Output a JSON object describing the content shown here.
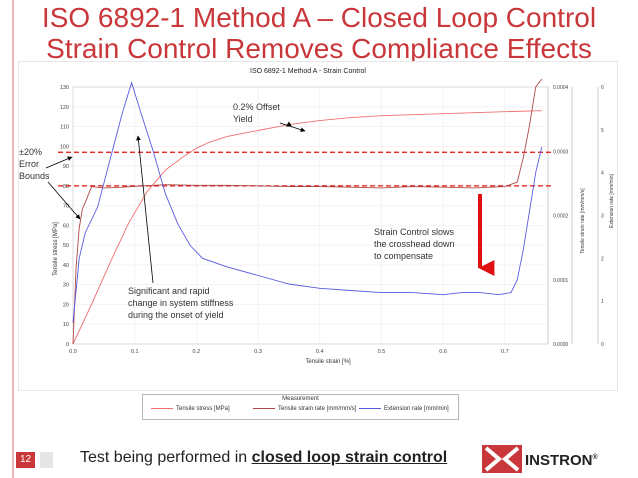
{
  "slide": {
    "title_line1": "ISO 6892-1 Method A – Closed Loop Control",
    "title_line2": "Strain Control Removes Compliance Effects",
    "page_number": "12",
    "footer_prefix": "Test being performed in ",
    "footer_emphasis": "closed loop strain control",
    "logo_text": "INSTRON",
    "logo_mark": "®"
  },
  "chart_data": {
    "type": "line",
    "title": "ISO 6892-1 Method A - Strain Control",
    "xlabel": "Tensile strain [%]",
    "ylabel_left": "Tensile stress [MPa]",
    "ylabel_right1": "Tensile strain rate [mm/mm/s]",
    "ylabel_right2": "Extension rate [mm/min]",
    "xlim": [
      0,
      0.77
    ],
    "ylim_left": [
      0,
      130
    ],
    "ylim_right1": [
      0,
      0.0004
    ],
    "ylim_right2": [
      0,
      6
    ],
    "x_ticks": [
      "0.0",
      "0.1",
      "0.2",
      "0.3",
      "0.4",
      "0.5",
      "0.6",
      "0.7"
    ],
    "y_ticks_left": [
      "0",
      "10",
      "20",
      "30",
      "40",
      "50",
      "60",
      "70",
      "80",
      "90",
      "100",
      "110",
      "120",
      "130"
    ],
    "y_ticks_right1": [
      "0.0000",
      "0.0001",
      "0.0002",
      "0.0003",
      "0.0004"
    ],
    "y_ticks_right2": [
      "0",
      "1",
      "2",
      "3",
      "4",
      "5",
      "6"
    ],
    "legend_title": "Measurement",
    "legend_position": "bottom",
    "grid": true,
    "series": [
      {
        "name": "Tensile stress [MPa]",
        "color": "#f07070",
        "axis": "left",
        "x": [
          0,
          0.03,
          0.06,
          0.09,
          0.12,
          0.15,
          0.18,
          0.2,
          0.22,
          0.25,
          0.3,
          0.35,
          0.4,
          0.45,
          0.5,
          0.55,
          0.6,
          0.65,
          0.7,
          0.76
        ],
        "y": [
          0,
          20,
          41,
          61,
          77,
          88,
          95,
          99,
          102,
          105,
          108,
          111,
          113,
          114.5,
          115.5,
          116,
          116.5,
          117,
          117.5,
          118
        ]
      },
      {
        "name": "Tensile strain rate [mm/mm/s]",
        "color": "#b04848",
        "axis": "right1",
        "x": [
          0,
          0.005,
          0.01,
          0.015,
          0.02,
          0.03,
          0.05,
          0.08,
          0.11,
          0.15,
          0.2,
          0.25,
          0.3,
          0.35,
          0.4,
          0.45,
          0.5,
          0.55,
          0.6,
          0.65,
          0.7,
          0.72,
          0.73,
          0.74,
          0.75,
          0.76
        ],
        "y": [
          0,
          0.00012,
          0.00018,
          0.00021,
          0.00022,
          0.000245,
          0.000243,
          0.000244,
          0.000246,
          0.000248,
          0.000247,
          0.000247,
          0.000246,
          0.000245,
          0.000245,
          0.000244,
          0.000243,
          0.000245,
          0.000244,
          0.000243,
          0.000245,
          0.000252,
          0.00029,
          0.00034,
          0.0004,
          0.00043
        ]
      },
      {
        "name": "Extension rate [mm/min]",
        "color": "#5a5ae0",
        "axis": "right2",
        "x": [
          0,
          0.01,
          0.02,
          0.04,
          0.06,
          0.08,
          0.095,
          0.11,
          0.13,
          0.15,
          0.17,
          0.19,
          0.21,
          0.25,
          0.3,
          0.35,
          0.4,
          0.45,
          0.5,
          0.55,
          0.6,
          0.63,
          0.66,
          0.69,
          0.71,
          0.72,
          0.73,
          0.74,
          0.75,
          0.76
        ],
        "y": [
          0.5,
          2.0,
          2.6,
          3.2,
          4.3,
          5.4,
          6.1,
          5.4,
          4.5,
          3.5,
          2.8,
          2.3,
          2.0,
          1.8,
          1.6,
          1.4,
          1.3,
          1.25,
          1.2,
          1.2,
          1.15,
          1.2,
          1.2,
          1.15,
          1.2,
          1.5,
          2.2,
          3.1,
          4.0,
          4.6
        ]
      }
    ],
    "error_bounds_left": [
      80,
      97
    ],
    "annotations": [
      {
        "text": "0.2% Offset\nYield",
        "kind": "label"
      },
      {
        "text": "±20%\nError\nBounds",
        "kind": "label"
      },
      {
        "text": "Strain Control slows\nthe crosshead down\nto compensate",
        "kind": "label"
      },
      {
        "text": "Significant and rapid\nchange in system stiffness\nduring the onset of yield",
        "kind": "label"
      }
    ]
  }
}
